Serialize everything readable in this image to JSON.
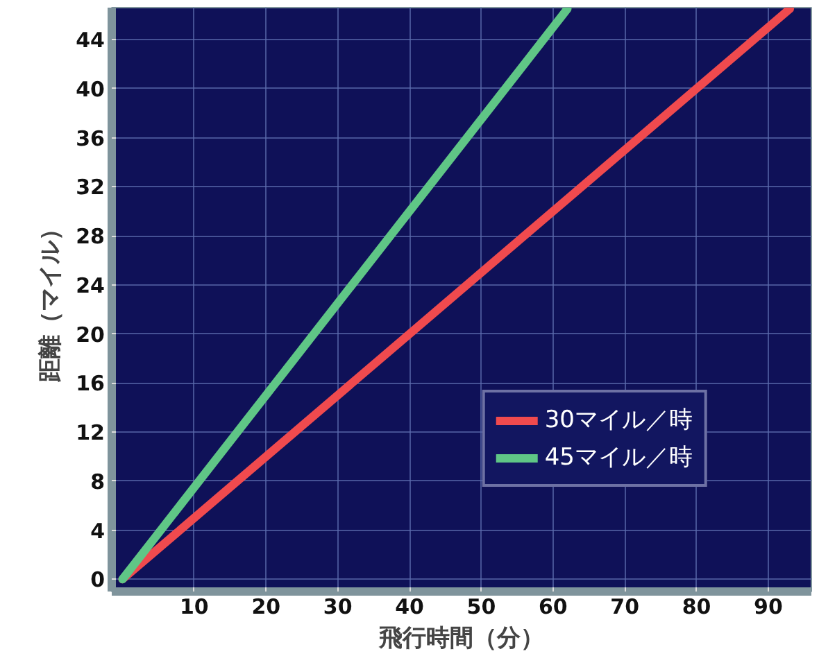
{
  "chart_data": {
    "type": "line",
    "xlabel": "飛行時間（分）",
    "ylabel": "距離（マイル）",
    "xlim": [
      -1.5,
      96
    ],
    "ylim": [
      -1,
      46.6
    ],
    "xticks": [
      10,
      20,
      30,
      40,
      50,
      60,
      70,
      80,
      90
    ],
    "yticks": [
      0,
      4,
      8,
      12,
      16,
      20,
      24,
      28,
      32,
      36,
      40,
      44
    ],
    "grid": true,
    "legend": "bottom right",
    "line_style": "solid",
    "series": [
      {
        "name": "30マイル／時",
        "color": "#f04a4e",
        "x": [
          0,
          93
        ],
        "values": [
          0,
          46.5
        ]
      },
      {
        "name": "45マイル／時",
        "color": "#5fc686",
        "x": [
          0,
          62
        ],
        "values": [
          0,
          46.5
        ]
      }
    ]
  }
}
